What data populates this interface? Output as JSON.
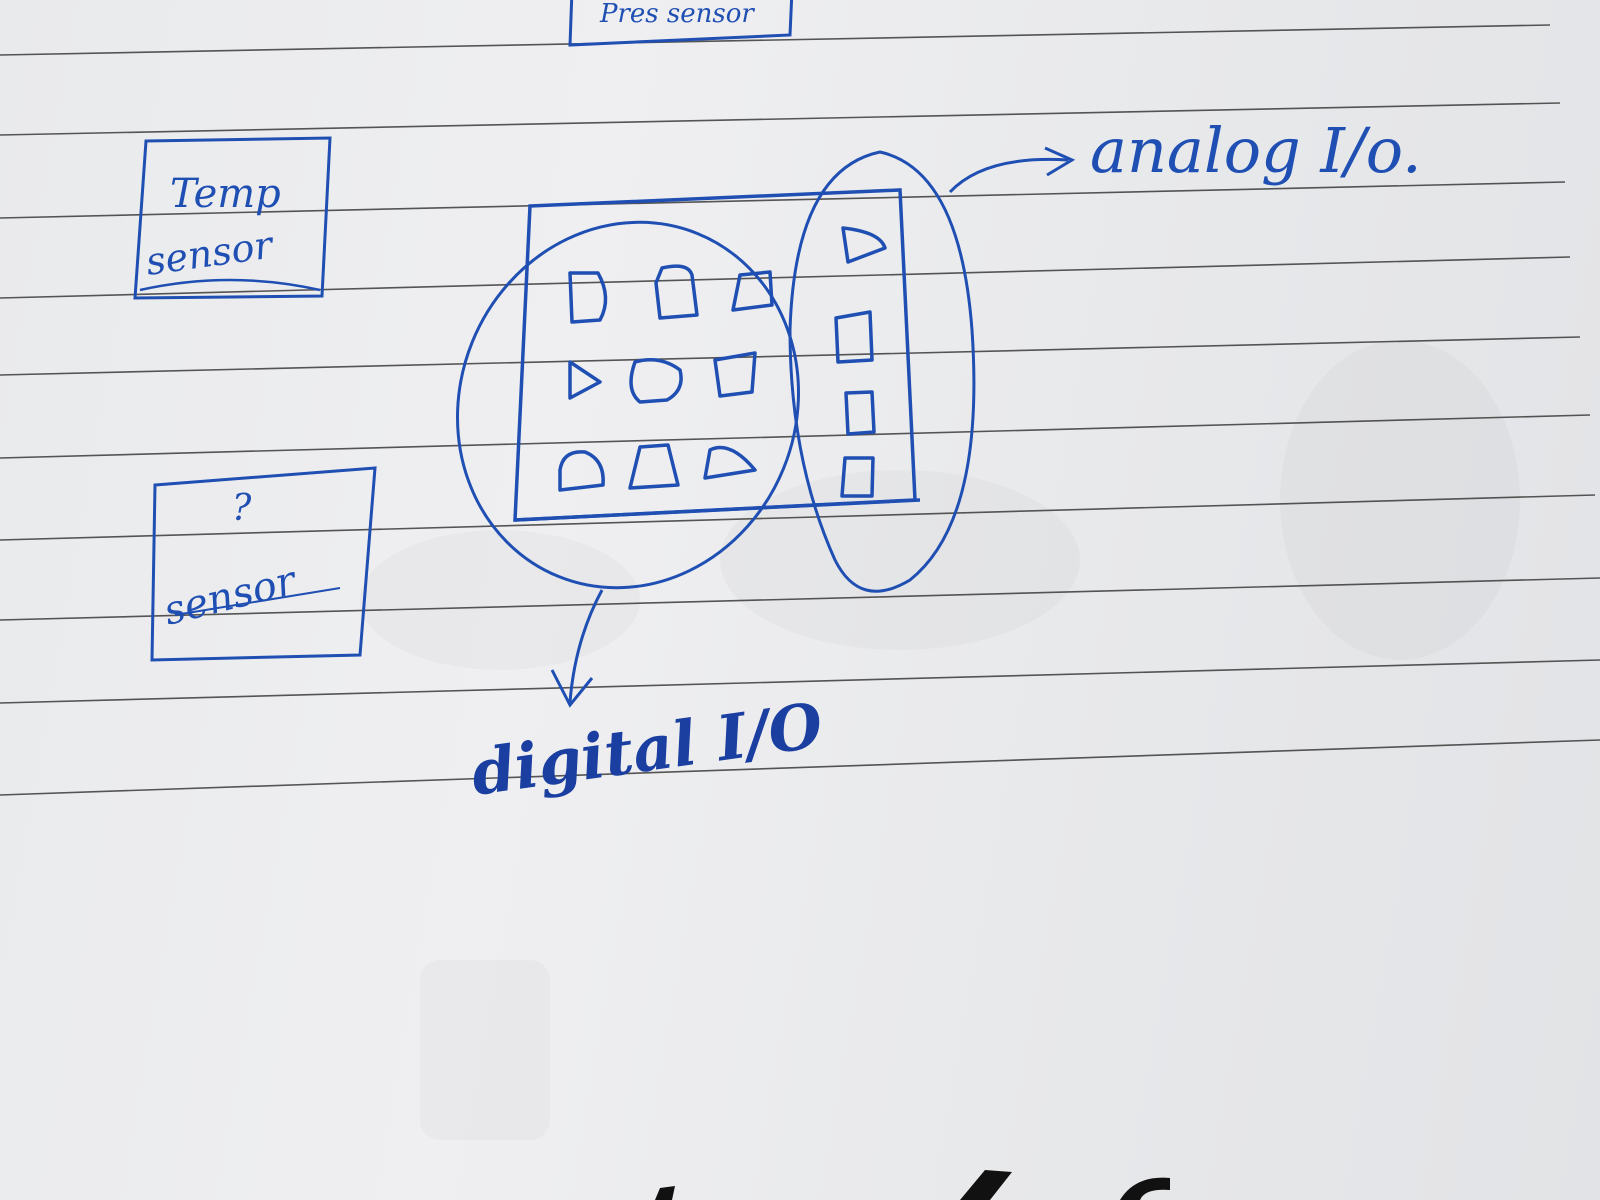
{
  "labels": {
    "top_box": "Pres sensor",
    "temp_line1": "Temp",
    "temp_line2": "sensor",
    "unknown_q": "?",
    "unknown_word": "sensor",
    "analog": "analog I/o.",
    "digital": "digital I/O"
  },
  "colors": {
    "ink": "#1f4fb3",
    "rule_line": "#3a3a3a",
    "paper": "#ececee"
  }
}
